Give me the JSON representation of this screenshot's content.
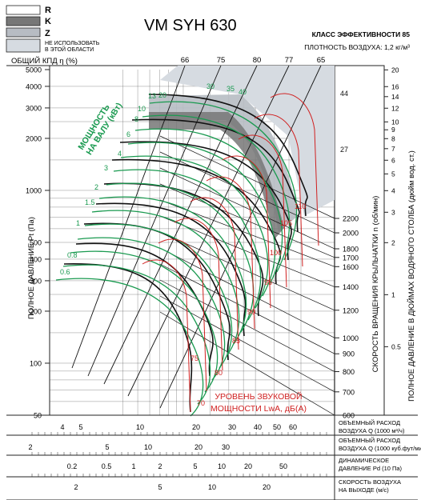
{
  "legend": {
    "items": [
      {
        "code": "R",
        "fill": "#ffffff"
      },
      {
        "code": "K",
        "fill": "#777777"
      },
      {
        "code": "Z",
        "fill": "#b7bcc3"
      },
      {
        "code": "НЕ ИСПОЛЬЗОВАТЬ В ЭТОЙ ОБЛАСТИ",
        "fill": "#d6dbe1"
      }
    ]
  },
  "header": {
    "model": "VM SYH 630",
    "efficiency_class": "КЛАСС ЭФФЕКТИВНОСТИ 85",
    "air_density": "ПЛОТНОСТЬ ВОЗДУХА: 1,2 кг/м³"
  },
  "colors": {
    "system_curve": "#111111",
    "power_curve": "#1a9a50",
    "sound_curve": "#d02020",
    "grid": "#444444",
    "forbidden_zone": "#d6dbe1",
    "zone_z": "#b7bcc3",
    "zone_k": "#777777"
  },
  "chart_data": {
    "type": "line",
    "title": "VM SYH 630",
    "x_axes": [
      {
        "label": "ОБЪЕМНЫЙ РАСХОД ВОЗДУХА Q (1000 м³/ч)",
        "scale": "log",
        "ticks": [
          "4",
          "5",
          "10",
          "20",
          "30",
          "40",
          "50",
          "60"
        ]
      },
      {
        "label": "ОБЪЕМНЫЙ РАСХОД ВОЗДУХА Q (1000 куб.фут/мин)",
        "scale": "log",
        "ticks": [
          "2",
          "5",
          "10",
          "20",
          "30"
        ]
      },
      {
        "label": "ДИНАМИЧЕСКОЕ ДАВЛЕНИЕ Pd (10 Па)",
        "scale": "log",
        "ticks": [
          "0.2",
          "0.5",
          "1",
          "2",
          "5",
          "10",
          "20",
          "50"
        ]
      },
      {
        "label": "СКОРОСТЬ ВОЗДУХА НА ВЫХОДЕ (м/с)",
        "scale": "log",
        "ticks": [
          "2",
          "5",
          "10",
          "20"
        ]
      }
    ],
    "y_left": {
      "label": "ПОЛНОЕ ДАВЛЕНИЕ Pt (Па)",
      "scale": "log",
      "ylim": [
        50,
        5000
      ],
      "ticks": [
        "5000",
        "4000",
        "3000",
        "2000",
        "1000",
        "500",
        "400",
        "300",
        "200",
        "100",
        "50"
      ]
    },
    "y_right": {
      "label": "ПОЛНОЕ ДАВЛЕНИЕ В ДЮЙМАХ ВОДЯНОГО СТОЛБА (дюйм вод. ст.)",
      "scale": "log",
      "ticks": [
        "20",
        "16",
        "14",
        "12",
        "10",
        "9",
        "8",
        "7",
        "6",
        "5",
        "4",
        "3",
        "2",
        "1",
        "0.5"
      ]
    },
    "speed_axis": {
      "label": "СКОРОСТЬ ВРАЩЕНИЯ КРЫЛЬЧАТКИ n (об/мин)",
      "ticks": [
        "2200",
        "2000",
        "1800",
        "1700",
        "1600",
        "1400",
        "1200",
        "1000",
        "900",
        "800",
        "700",
        "600"
      ]
    },
    "efficiency": {
      "label": "ОБЩИЙ КПД η (%)",
      "ticks": [
        "66",
        "75",
        "80",
        "77",
        "65"
      ]
    },
    "power_label": "МОЩНОСТЬ НА ВАЛУ (кВт)",
    "power_values": [
      "0.6",
      "0.8",
      "1",
      "1.5",
      "2",
      "3",
      "4",
      "6",
      "8",
      "10",
      "13",
      "20",
      "30",
      "35",
      "40",
      "44",
      "27"
    ],
    "sound_label": "УРОВЕНЬ ЗВУКОВОЙ МОЩНОСТИ LwA, дБ(A)",
    "sound_values": [
      "70",
      "75",
      "80",
      "85",
      "90",
      "95",
      "100",
      "105",
      "110"
    ]
  }
}
